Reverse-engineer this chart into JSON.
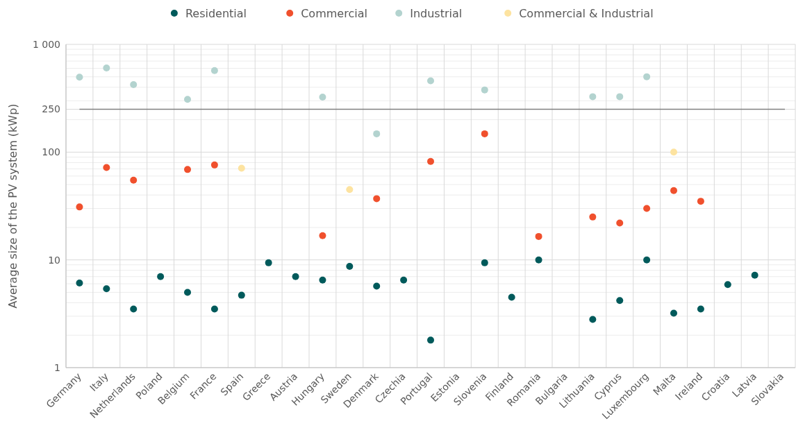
{
  "chart_data": {
    "type": "scatter",
    "ylabel": "Average size of the PV system (kWp)",
    "categories": [
      "Germany",
      "Italy",
      "Netherlands",
      "Poland",
      "Belgium",
      "France",
      "Spain",
      "Greece",
      "Austria",
      "Hungary",
      "Sweden",
      "Denmark",
      "Czechia",
      "Portugal",
      "Estonia",
      "Slovenia",
      "Finland",
      "Romania",
      "Bulgaria",
      "Lithuania",
      "Cyprus",
      "Luxembourg",
      "Malta",
      "Ireland",
      "Croatia",
      "Latvia",
      "Slovakia"
    ],
    "series": [
      {
        "name": "Residential",
        "color": "#005a5b",
        "values": [
          6.1,
          5.4,
          3.5,
          7.0,
          5.0,
          3.5,
          4.7,
          9.4,
          7.0,
          6.5,
          8.7,
          5.7,
          6.5,
          1.8,
          null,
          9.4,
          4.5,
          10,
          null,
          2.8,
          4.2,
          10,
          3.2,
          3.5,
          5.9,
          7.2,
          null
        ]
      },
      {
        "name": "Commercial",
        "color": "#f0502d",
        "values": [
          31,
          72,
          55,
          null,
          69,
          76,
          null,
          null,
          null,
          16.8,
          null,
          37,
          null,
          82,
          null,
          148,
          null,
          16.5,
          null,
          25,
          22,
          30,
          44,
          35,
          null,
          null,
          null
        ]
      },
      {
        "name": "Industrial",
        "color": "#b3d3cf",
        "values": [
          496,
          604,
          423,
          null,
          309,
          571,
          null,
          null,
          null,
          324,
          null,
          148,
          null,
          459,
          null,
          378,
          null,
          null,
          null,
          327,
          327,
          501,
          null,
          null,
          null,
          null,
          null
        ]
      },
      {
        "name": "Commercial & Industrial",
        "color": "#fde3a0",
        "values": [
          null,
          null,
          null,
          null,
          null,
          null,
          71,
          null,
          null,
          null,
          45,
          null,
          null,
          null,
          null,
          null,
          null,
          null,
          null,
          null,
          null,
          null,
          100,
          null,
          null,
          null,
          null
        ]
      }
    ],
    "log": true,
    "ylim": [
      1,
      1000
    ],
    "yticks": [
      1,
      10,
      100,
      250,
      {
        "value": 1000,
        "label": "1 000"
      }
    ],
    "ref_lines": [
      {
        "axis": "y",
        "value": 250,
        "color": "#7f7f7f"
      }
    ],
    "grid": true,
    "legend": "top",
    "marker": "circle"
  }
}
